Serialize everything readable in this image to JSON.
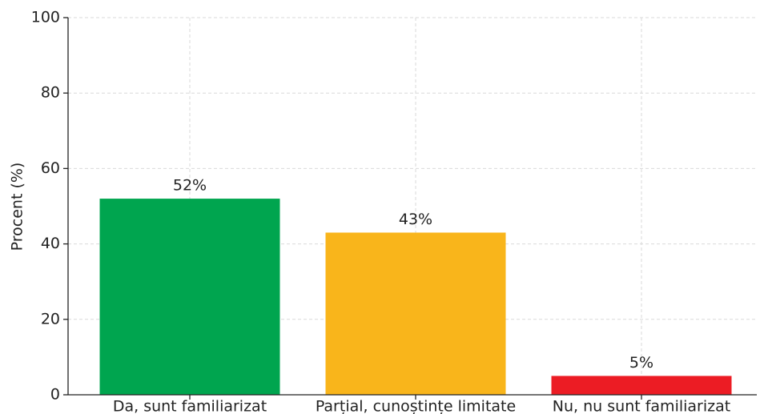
{
  "chart_data": {
    "type": "bar",
    "ylabel": "Procent (%)",
    "categories": [
      "Da, sunt familiarizat",
      "Parțial, cunoștințe limitate",
      "Nu, nu sunt familiarizat"
    ],
    "values": [
      52,
      43,
      5
    ],
    "value_labels": [
      "52%",
      "43%",
      "5%"
    ],
    "colors": [
      "#00a54f",
      "#f9b51b",
      "#ec1c24"
    ],
    "ylim": [
      0,
      100
    ],
    "yticks": [
      0,
      20,
      40,
      60,
      80,
      100
    ],
    "grid": true
  }
}
